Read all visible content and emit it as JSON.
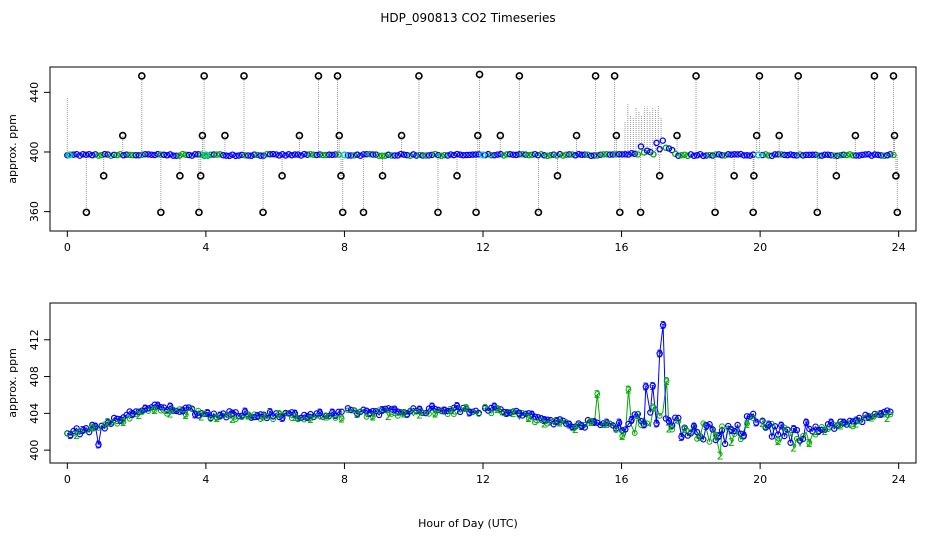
{
  "title": "HDP_090813  CO2 Timeseries",
  "xlabel": "Hour of Day (UTC)",
  "colors": {
    "background": "#ffffff",
    "outlier": "#000000",
    "series1": "#0000ff",
    "series2": "#00aa00",
    "highlight": "#00cccc",
    "stems": "#999999"
  },
  "chart_data": [
    {
      "type": "scatter",
      "ylabel": "approx. ppm",
      "xlim": [
        -0.5,
        24.5
      ],
      "ylim": [
        347,
        457
      ],
      "xticks": [
        0,
        4,
        8,
        12,
        16,
        20,
        24
      ],
      "yticks": [
        360,
        400,
        440
      ],
      "grid": false,
      "marker": "circle",
      "baseline_ppm": 398,
      "outliers": [
        {
          "x": 0.55,
          "y": 359.5
        },
        {
          "x": 1.05,
          "y": 384
        },
        {
          "x": 1.6,
          "y": 411
        },
        {
          "x": 2.15,
          "y": 451
        },
        {
          "x": 2.7,
          "y": 359.5
        },
        {
          "x": 3.25,
          "y": 384
        },
        {
          "x": 3.8,
          "y": 359.5
        },
        {
          "x": 3.85,
          "y": 384
        },
        {
          "x": 3.9,
          "y": 411
        },
        {
          "x": 3.95,
          "y": 451
        },
        {
          "x": 4.55,
          "y": 411
        },
        {
          "x": 5.1,
          "y": 451
        },
        {
          "x": 5.65,
          "y": 359.5
        },
        {
          "x": 6.2,
          "y": 384
        },
        {
          "x": 6.7,
          "y": 411
        },
        {
          "x": 7.25,
          "y": 451
        },
        {
          "x": 7.8,
          "y": 451
        },
        {
          "x": 7.85,
          "y": 411
        },
        {
          "x": 7.9,
          "y": 384
        },
        {
          "x": 7.95,
          "y": 359.5
        },
        {
          "x": 8.55,
          "y": 359.5
        },
        {
          "x": 9.1,
          "y": 384
        },
        {
          "x": 9.65,
          "y": 411
        },
        {
          "x": 10.15,
          "y": 451
        },
        {
          "x": 10.7,
          "y": 359.5
        },
        {
          "x": 11.25,
          "y": 384
        },
        {
          "x": 11.8,
          "y": 359.5
        },
        {
          "x": 11.85,
          "y": 411
        },
        {
          "x": 11.9,
          "y": 452
        },
        {
          "x": 12.5,
          "y": 411
        },
        {
          "x": 13.05,
          "y": 451
        },
        {
          "x": 13.6,
          "y": 359.5
        },
        {
          "x": 14.15,
          "y": 384
        },
        {
          "x": 14.7,
          "y": 411
        },
        {
          "x": 15.25,
          "y": 451
        },
        {
          "x": 15.8,
          "y": 451
        },
        {
          "x": 15.85,
          "y": 411
        },
        {
          "x": 15.95,
          "y": 359.5
        },
        {
          "x": 16.55,
          "y": 359.5
        },
        {
          "x": 17.1,
          "y": 384
        },
        {
          "x": 17.6,
          "y": 411
        },
        {
          "x": 18.15,
          "y": 451
        },
        {
          "x": 18.7,
          "y": 359.5
        },
        {
          "x": 19.25,
          "y": 384
        },
        {
          "x": 19.8,
          "y": 359.5
        },
        {
          "x": 19.82,
          "y": 384
        },
        {
          "x": 19.9,
          "y": 411
        },
        {
          "x": 19.98,
          "y": 451
        },
        {
          "x": 20.55,
          "y": 411
        },
        {
          "x": 21.1,
          "y": 451
        },
        {
          "x": 21.65,
          "y": 359.5
        },
        {
          "x": 22.2,
          "y": 384
        },
        {
          "x": 22.75,
          "y": 411
        },
        {
          "x": 23.3,
          "y": 451
        },
        {
          "x": 23.85,
          "y": 451
        },
        {
          "x": 23.88,
          "y": 411
        },
        {
          "x": 23.92,
          "y": 384
        },
        {
          "x": 23.96,
          "y": 359.5
        }
      ]
    },
    {
      "type": "line",
      "ylabel": "approx. ppm",
      "xlim": [
        -0.5,
        24.5
      ],
      "ylim": [
        398.6,
        416.0
      ],
      "xticks": [
        0,
        4,
        8,
        12,
        16,
        20,
        24
      ],
      "yticks": [
        400,
        404,
        408,
        412
      ],
      "grid": false,
      "marker_labels": {
        "series1": "3",
        "series2": "2"
      },
      "profile": [
        {
          "x": 0.0,
          "y": 401.8
        },
        {
          "x": 0.5,
          "y": 402.2
        },
        {
          "x": 1.0,
          "y": 402.6
        },
        {
          "x": 1.5,
          "y": 403.4
        },
        {
          "x": 2.0,
          "y": 404.3
        },
        {
          "x": 2.5,
          "y": 404.6
        },
        {
          "x": 3.0,
          "y": 404.5
        },
        {
          "x": 3.5,
          "y": 404.4
        },
        {
          "x": 4.0,
          "y": 403.9
        },
        {
          "x": 5.0,
          "y": 403.8
        },
        {
          "x": 6.0,
          "y": 403.9
        },
        {
          "x": 7.0,
          "y": 403.8
        },
        {
          "x": 7.9,
          "y": 403.8
        },
        {
          "x": 8.1,
          "y": 404.2
        },
        {
          "x": 9.0,
          "y": 404.2
        },
        {
          "x": 10.0,
          "y": 404.3
        },
        {
          "x": 11.0,
          "y": 404.5
        },
        {
          "x": 11.9,
          "y": 404.4
        },
        {
          "x": 12.1,
          "y": 404.6
        },
        {
          "x": 12.5,
          "y": 404.3
        },
        {
          "x": 13.0,
          "y": 404.0
        },
        {
          "x": 13.5,
          "y": 403.6
        },
        {
          "x": 14.0,
          "y": 403.2
        },
        {
          "x": 14.5,
          "y": 402.9
        },
        {
          "x": 15.0,
          "y": 402.8
        },
        {
          "x": 15.5,
          "y": 402.9
        },
        {
          "x": 16.0,
          "y": 402.8
        },
        {
          "x": 16.5,
          "y": 403.2
        },
        {
          "x": 17.0,
          "y": 404.0
        },
        {
          "x": 17.5,
          "y": 402.5
        },
        {
          "x": 18.0,
          "y": 402.4
        },
        {
          "x": 18.5,
          "y": 402.1
        },
        {
          "x": 19.0,
          "y": 401.7
        },
        {
          "x": 19.5,
          "y": 402.4
        },
        {
          "x": 19.9,
          "y": 403.4
        },
        {
          "x": 20.1,
          "y": 402.5
        },
        {
          "x": 20.5,
          "y": 402.0
        },
        {
          "x": 21.0,
          "y": 401.6
        },
        {
          "x": 21.5,
          "y": 402.1
        },
        {
          "x": 22.0,
          "y": 402.6
        },
        {
          "x": 22.5,
          "y": 402.9
        },
        {
          "x": 23.0,
          "y": 403.5
        },
        {
          "x": 23.5,
          "y": 403.8
        },
        {
          "x": 23.8,
          "y": 404.2
        }
      ],
      "spikes": [
        {
          "x": 15.3,
          "y": 406.1,
          "series": "2"
        },
        {
          "x": 16.2,
          "y": 406.6,
          "series": "2"
        },
        {
          "x": 16.7,
          "y": 406.9,
          "series": "3"
        },
        {
          "x": 16.9,
          "y": 407.0,
          "series": "3"
        },
        {
          "x": 17.1,
          "y": 410.5,
          "series": "3"
        },
        {
          "x": 17.2,
          "y": 413.6,
          "series": "3"
        },
        {
          "x": 17.3,
          "y": 407.5,
          "series": "2"
        },
        {
          "x": 18.85,
          "y": 399.4,
          "series": "2"
        },
        {
          "x": 0.9,
          "y": 400.6,
          "series": "3"
        }
      ]
    }
  ]
}
